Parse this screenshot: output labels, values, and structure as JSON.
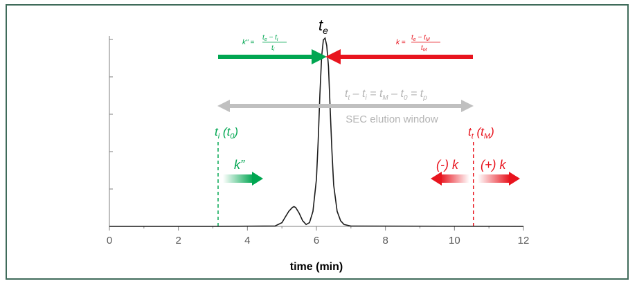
{
  "chart_data": {
    "type": "line",
    "title": "",
    "xlabel": "time (min)",
    "ylabel": "",
    "xlim": [
      0,
      12
    ],
    "ylim": [
      0,
      1
    ],
    "x_ticks": [
      "0",
      "2",
      "4",
      "6",
      "8",
      "10",
      "12"
    ],
    "y_ticks_labeled": false,
    "grid": false,
    "series": [
      {
        "values_description_free": true,
        "x": [
          0,
          3.0,
          4.8,
          5.0,
          5.1,
          5.2,
          5.3,
          5.35,
          5.4,
          5.5,
          5.6,
          5.7,
          5.8,
          5.9,
          6.0,
          6.05,
          6.1,
          6.15,
          6.2,
          6.25,
          6.3,
          6.35,
          6.4,
          6.45,
          6.5,
          6.6,
          6.7,
          6.8,
          7.0,
          12
        ],
        "y": [
          0,
          0,
          0.002,
          0.02,
          0.05,
          0.08,
          0.1,
          0.105,
          0.1,
          0.07,
          0.03,
          0.01,
          0.02,
          0.08,
          0.25,
          0.45,
          0.7,
          0.9,
          0.99,
          1.0,
          0.96,
          0.85,
          0.62,
          0.4,
          0.22,
          0.08,
          0.03,
          0.01,
          0.002,
          0
        ]
      }
    ],
    "color": "#1a1a1a",
    "annotations": {
      "peak_label": "t",
      "peak_sub": "e",
      "k2_formula": {
        "lhs": "k\" =",
        "num": "t",
        "num_sub": "e",
        "num_mid": " − t",
        "num_sub2": "i",
        "den": "t",
        "den_sub": "i"
      },
      "k_formula": {
        "lhs": "k =",
        "num": "t",
        "num_sub": "e",
        "num_mid": " − t",
        "num_sub2": "M",
        "den": "t",
        "den_sub": "M"
      },
      "window_eq": {
        "p1": "t",
        "s1": "t",
        "p2": " – t",
        "s2": "i",
        "p3": " = t",
        "s3": "M",
        "p4": " – t",
        "s4": "0",
        "p5": " = t",
        "s5": "p"
      },
      "window_label": "SEC elution window",
      "ti_label": {
        "a": "t",
        "a_sub": "i",
        "b": " (t",
        "b_sub": "0",
        "c": ")"
      },
      "tt_label": {
        "a": "t",
        "a_sub": "t",
        "b": " (t",
        "b_sub": "M",
        "c": ")"
      },
      "k2_label": "k”",
      "neg_k_label": "(-) k",
      "pos_k_label": "(+) k",
      "ti_x": 3.15,
      "tt_x": 10.55,
      "green": "#00a651",
      "red": "#e8141e",
      "gray": "#c0c0c0"
    }
  }
}
